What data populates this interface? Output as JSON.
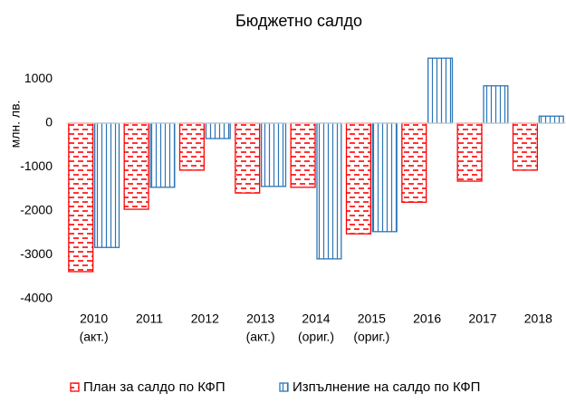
{
  "chart_data": {
    "type": "bar",
    "title": "Бюджетно салдо",
    "y_label": "млн. лв.",
    "categories": [
      "2010",
      "2011",
      "2012",
      "2013",
      "2014",
      "2015",
      "2016",
      "2017",
      "2018"
    ],
    "category_notes": [
      "(акт.)",
      null,
      null,
      "(акт.)",
      "(ориг.)",
      "(ориг.)",
      null,
      null,
      null
    ],
    "series": [
      {
        "name": "План за салдо по КФП",
        "color": "#ff0000",
        "values": [
          -3380,
          -1960,
          -1070,
          -1590,
          -1460,
          -2520,
          -1800,
          -1320,
          -1070
        ]
      },
      {
        "name": "Изпълнение на салдо по КФП",
        "color": "#2e75b6",
        "values": [
          -2830,
          -1460,
          -350,
          -1440,
          -3090,
          -2470,
          1480,
          850,
          160
        ]
      }
    ],
    "ylim": [
      -4000,
      1500
    ],
    "yticks": [
      -4000,
      -3000,
      -2000,
      -1000,
      0,
      1000
    ],
    "legend": "bottom"
  }
}
